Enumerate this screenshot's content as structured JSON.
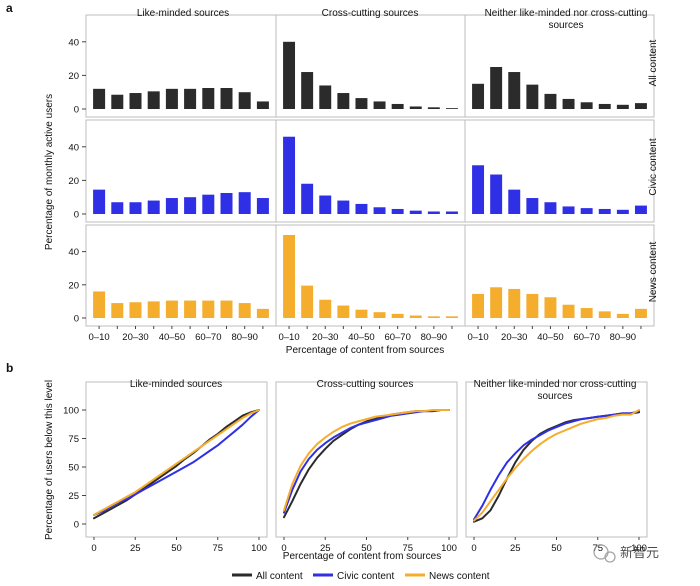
{
  "watermark": "新智元",
  "colors": {
    "all": "#2b2b2b",
    "civic": "#2f2fe6",
    "news": "#f5ad2e",
    "frame": "#bdbdbd",
    "tick": "#444444"
  },
  "panel_a": {
    "label": "a",
    "ylabel": "Percentage of monthly active users",
    "xlabel": "Percentage of content from sources",
    "columns": [
      "Like-minded sources",
      "Cross-cutting sources",
      "Neither like-minded nor cross-cutting sources"
    ],
    "rows": [
      "All content",
      "Civic content",
      "News content"
    ],
    "y_ticks": [
      0,
      20,
      40
    ],
    "x_ticklabels": [
      "0–10",
      "20–30",
      "40–50",
      "60–70",
      "80–90"
    ]
  },
  "panel_b": {
    "label": "b",
    "ylabel": "Percentage of users below this level",
    "xlabel": "Percentage of content from sources",
    "columns": [
      "Like-minded sources",
      "Cross-cutting sources",
      "Neither like-minded nor cross-cutting sources"
    ],
    "y_ticks": [
      0,
      25,
      50,
      75,
      100
    ],
    "x_ticks": [
      0,
      25,
      50,
      75,
      100
    ],
    "legend": [
      "All content",
      "Civic content",
      "News content"
    ]
  },
  "chart_data": [
    {
      "type": "bar",
      "panel": "a",
      "categories": [
        "0–10",
        "10–20",
        "20–30",
        "30–40",
        "40–50",
        "50–60",
        "60–70",
        "70–80",
        "80–90",
        "90–100"
      ],
      "ylim": [
        0,
        50
      ],
      "facets": [
        {
          "row": "All content",
          "column": "Like-minded sources",
          "values": [
            12,
            8.5,
            9.5,
            10.5,
            12,
            12,
            12.5,
            12.5,
            10,
            4.5
          ]
        },
        {
          "row": "All content",
          "column": "Cross-cutting sources",
          "values": [
            40,
            22,
            14,
            9.5,
            6.5,
            4.5,
            3,
            1.5,
            1,
            0.5
          ]
        },
        {
          "row": "All content",
          "column": "Neither like-minded nor cross-cutting sources",
          "values": [
            15,
            25,
            22,
            14.5,
            9,
            6,
            4,
            3,
            2.5,
            3.5
          ]
        },
        {
          "row": "Civic content",
          "column": "Like-minded sources",
          "values": [
            14.5,
            7,
            7,
            8,
            9.5,
            10,
            11.5,
            12.5,
            13,
            9.5
          ]
        },
        {
          "row": "Civic content",
          "column": "Cross-cutting sources",
          "values": [
            46,
            18,
            11,
            8,
            6,
            4,
            3,
            2,
            1.5,
            1.5
          ]
        },
        {
          "row": "Civic content",
          "column": "Neither like-minded nor cross-cutting sources",
          "values": [
            29,
            23.5,
            14.5,
            9.5,
            7,
            4.5,
            3.5,
            3,
            2.5,
            5
          ]
        },
        {
          "row": "News content",
          "column": "Like-minded sources",
          "values": [
            16,
            9,
            9.5,
            10,
            10.5,
            10.5,
            10.5,
            10.5,
            9,
            5.5
          ]
        },
        {
          "row": "News content",
          "column": "Cross-cutting sources",
          "values": [
            50,
            19.5,
            11,
            7.5,
            5,
            3.5,
            2.5,
            1.5,
            1,
            1
          ]
        },
        {
          "row": "News content",
          "column": "Neither like-minded nor cross-cutting sources",
          "values": [
            14.5,
            18.5,
            17.5,
            14.5,
            12.5,
            8,
            6,
            4,
            2.5,
            5.5
          ]
        }
      ]
    },
    {
      "type": "line",
      "panel": "b",
      "x": [
        0,
        5,
        10,
        15,
        20,
        25,
        30,
        35,
        40,
        45,
        50,
        55,
        60,
        65,
        70,
        75,
        80,
        85,
        90,
        95,
        100
      ],
      "xlim": [
        0,
        100
      ],
      "ylim": [
        0,
        100
      ],
      "facets": [
        {
          "column": "Like-minded sources",
          "series": [
            {
              "name": "All content",
              "values": [
                5,
                9,
                13,
                17,
                21,
                26,
                31,
                36,
                41,
                46,
                51,
                57,
                62,
                68,
                74,
                79,
                85,
                90,
                95,
                98,
                100
              ]
            },
            {
              "name": "Civic content",
              "values": [
                8,
                11,
                15,
                19,
                22,
                26,
                30,
                34,
                38,
                42,
                46,
                50,
                54,
                59,
                64,
                69,
                75,
                81,
                87,
                94,
                100
              ]
            },
            {
              "name": "News content",
              "values": [
                8,
                12,
                16,
                20,
                24,
                28,
                33,
                38,
                43,
                48,
                53,
                58,
                63,
                68,
                73,
                78,
                83,
                88,
                93,
                97,
                100
              ]
            }
          ]
        },
        {
          "column": "Cross-cutting sources",
          "series": [
            {
              "name": "All content",
              "values": [
                6,
                20,
                35,
                48,
                58,
                66,
                73,
                78,
                83,
                87,
                90,
                92,
                94,
                96,
                97,
                98,
                99,
                99,
                99,
                100,
                100
              ]
            },
            {
              "name": "Civic content",
              "values": [
                10,
                30,
                46,
                57,
                65,
                71,
                76,
                80,
                84,
                87,
                89,
                91,
                93,
                95,
                96,
                97,
                98,
                99,
                99,
                100,
                100
              ]
            },
            {
              "name": "News content",
              "values": [
                12,
                35,
                51,
                62,
                70,
                76,
                81,
                85,
                88,
                90,
                92,
                94,
                95,
                96,
                97,
                98,
                99,
                99,
                100,
                100,
                100
              ]
            }
          ]
        },
        {
          "column": "Neither like-minded nor cross-cutting sources",
          "series": [
            {
              "name": "All content",
              "values": [
                2,
                5,
                12,
                25,
                40,
                54,
                65,
                73,
                79,
                83,
                86,
                89,
                91,
                92,
                93,
                94,
                95,
                96,
                97,
                97,
                98
              ]
            },
            {
              "name": "Civic content",
              "values": [
                4,
                16,
                30,
                43,
                54,
                62,
                69,
                74,
                78,
                82,
                85,
                88,
                90,
                92,
                93,
                94,
                95,
                96,
                97,
                97,
                99
              ]
            },
            {
              "name": "News content",
              "values": [
                3,
                10,
                20,
                30,
                40,
                49,
                57,
                64,
                70,
                75,
                79,
                82,
                85,
                88,
                90,
                92,
                93,
                95,
                96,
                96,
                100
              ]
            }
          ]
        }
      ]
    }
  ]
}
